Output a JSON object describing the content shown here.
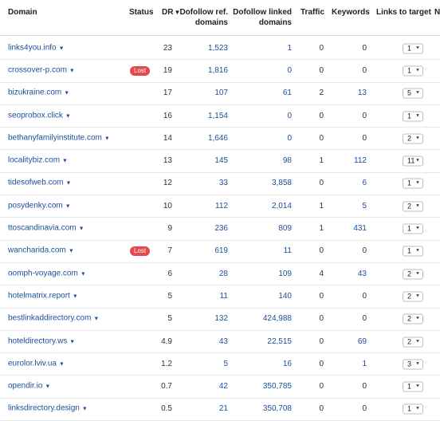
{
  "columns": {
    "domain": "Domain",
    "status": "Status",
    "dr": "DR",
    "dofollow_ref": [
      "Dofollow ref.",
      "domains"
    ],
    "dofollow_linked": [
      "Dofollow linked",
      "domains"
    ],
    "traffic": "Traffic",
    "keywords": "Keywords",
    "links_to_target": "Links to target",
    "cut_off": "N"
  },
  "rows": [
    {
      "domain": "links4you.info",
      "status": "",
      "dr": "23",
      "ref": "1,523",
      "linked": "1",
      "traffic": "0",
      "keywords": "0",
      "links": "1"
    },
    {
      "domain": "crossover-p.com",
      "status": "Lost",
      "dr": "19",
      "ref": "1,816",
      "linked": "0",
      "traffic": "0",
      "keywords": "0",
      "links": "1"
    },
    {
      "domain": "bizukraine.com",
      "status": "",
      "dr": "17",
      "ref": "107",
      "linked": "61",
      "traffic": "2",
      "keywords": "13",
      "links": "5"
    },
    {
      "domain": "seoprobox.click",
      "status": "",
      "dr": "16",
      "ref": "1,154",
      "linked": "0",
      "traffic": "0",
      "keywords": "0",
      "links": "1"
    },
    {
      "domain": "bethanyfamilyinstitute.com",
      "status": "",
      "dr": "14",
      "ref": "1,646",
      "linked": "0",
      "traffic": "0",
      "keywords": "0",
      "links": "2"
    },
    {
      "domain": "localitybiz.com",
      "status": "",
      "dr": "13",
      "ref": "145",
      "linked": "98",
      "traffic": "1",
      "keywords": "112",
      "links": "11"
    },
    {
      "domain": "tidesofweb.com",
      "status": "",
      "dr": "12",
      "ref": "33",
      "linked": "3,858",
      "traffic": "0",
      "keywords": "6",
      "links": "1"
    },
    {
      "domain": "posydenky.com",
      "status": "",
      "dr": "10",
      "ref": "112",
      "linked": "2,014",
      "traffic": "1",
      "keywords": "5",
      "links": "2"
    },
    {
      "domain": "ttoscandinavia.com",
      "status": "",
      "dr": "9",
      "ref": "236",
      "linked": "809",
      "traffic": "1",
      "keywords": "431",
      "links": "1"
    },
    {
      "domain": "wancharida.com",
      "status": "Lost",
      "dr": "7",
      "ref": "619",
      "linked": "11",
      "traffic": "0",
      "keywords": "0",
      "links": "1"
    },
    {
      "domain": "oomph-voyage.com",
      "status": "",
      "dr": "6",
      "ref": "28",
      "linked": "109",
      "traffic": "4",
      "keywords": "43",
      "links": "2"
    },
    {
      "domain": "hotelmatrix.report",
      "status": "",
      "dr": "5",
      "ref": "11",
      "linked": "140",
      "traffic": "0",
      "keywords": "0",
      "links": "2"
    },
    {
      "domain": "bestlinkaddirectory.com",
      "status": "",
      "dr": "5",
      "ref": "132",
      "linked": "424,988",
      "traffic": "0",
      "keywords": "0",
      "links": "2"
    },
    {
      "domain": "hoteldirectory.ws",
      "status": "",
      "dr": "4.9",
      "ref": "43",
      "linked": "22,515",
      "traffic": "0",
      "keywords": "69",
      "links": "2"
    },
    {
      "domain": "eurolor.lviv.ua",
      "status": "",
      "dr": "1.2",
      "ref": "5",
      "linked": "16",
      "traffic": "0",
      "keywords": "1",
      "links": "3"
    },
    {
      "domain": "opendir.io",
      "status": "",
      "dr": "0.7",
      "ref": "42",
      "linked": "350,785",
      "traffic": "0",
      "keywords": "0",
      "links": "1"
    },
    {
      "domain": "linksdirectory.design",
      "status": "",
      "dr": "0.5",
      "ref": "21",
      "linked": "350,708",
      "traffic": "0",
      "keywords": "0",
      "links": "1"
    }
  ],
  "colors": {
    "link": "#1b4f9c",
    "lost_badge": "#e5484d"
  }
}
